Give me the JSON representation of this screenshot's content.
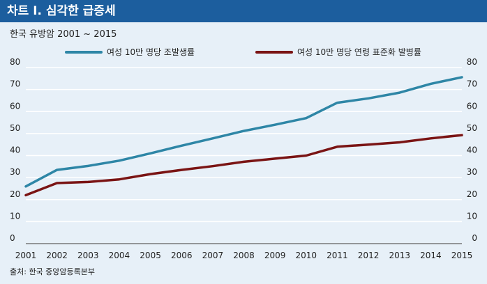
{
  "header": {
    "title": "차트 I. 심각한 급증세"
  },
  "subtitle": "한국 유방암 2001 ~ 2015",
  "source": "출처: 한국 중앙암등록본부",
  "colors": {
    "header_bg": "#1c5e9e",
    "series1": "#2e86a6",
    "series2": "#7a1414",
    "gridline": "#ffffff"
  },
  "chart_data": {
    "type": "line",
    "x": [
      2001,
      2002,
      2003,
      2004,
      2005,
      2006,
      2007,
      2008,
      2009,
      2010,
      2011,
      2012,
      2013,
      2014,
      2015
    ],
    "series": [
      {
        "name": "여성 10만 명당 조발생률",
        "values": [
          26,
          33.5,
          35.3,
          37.7,
          41,
          44.5,
          47.8,
          51.2,
          54,
          57,
          64,
          66,
          68.6,
          72.6,
          75.6
        ]
      },
      {
        "name": "여성 10만 명당 연령 표준화 발병률",
        "values": [
          22,
          27.5,
          28,
          29.2,
          31.6,
          33.5,
          35.2,
          37.2,
          38.6,
          40,
          44,
          45,
          46,
          47.8,
          49.3
        ]
      }
    ],
    "ylim": [
      0,
      80
    ],
    "yticks": [
      0,
      10,
      20,
      30,
      40,
      50,
      60,
      70,
      80
    ],
    "grid": true,
    "legend_position": "top"
  }
}
